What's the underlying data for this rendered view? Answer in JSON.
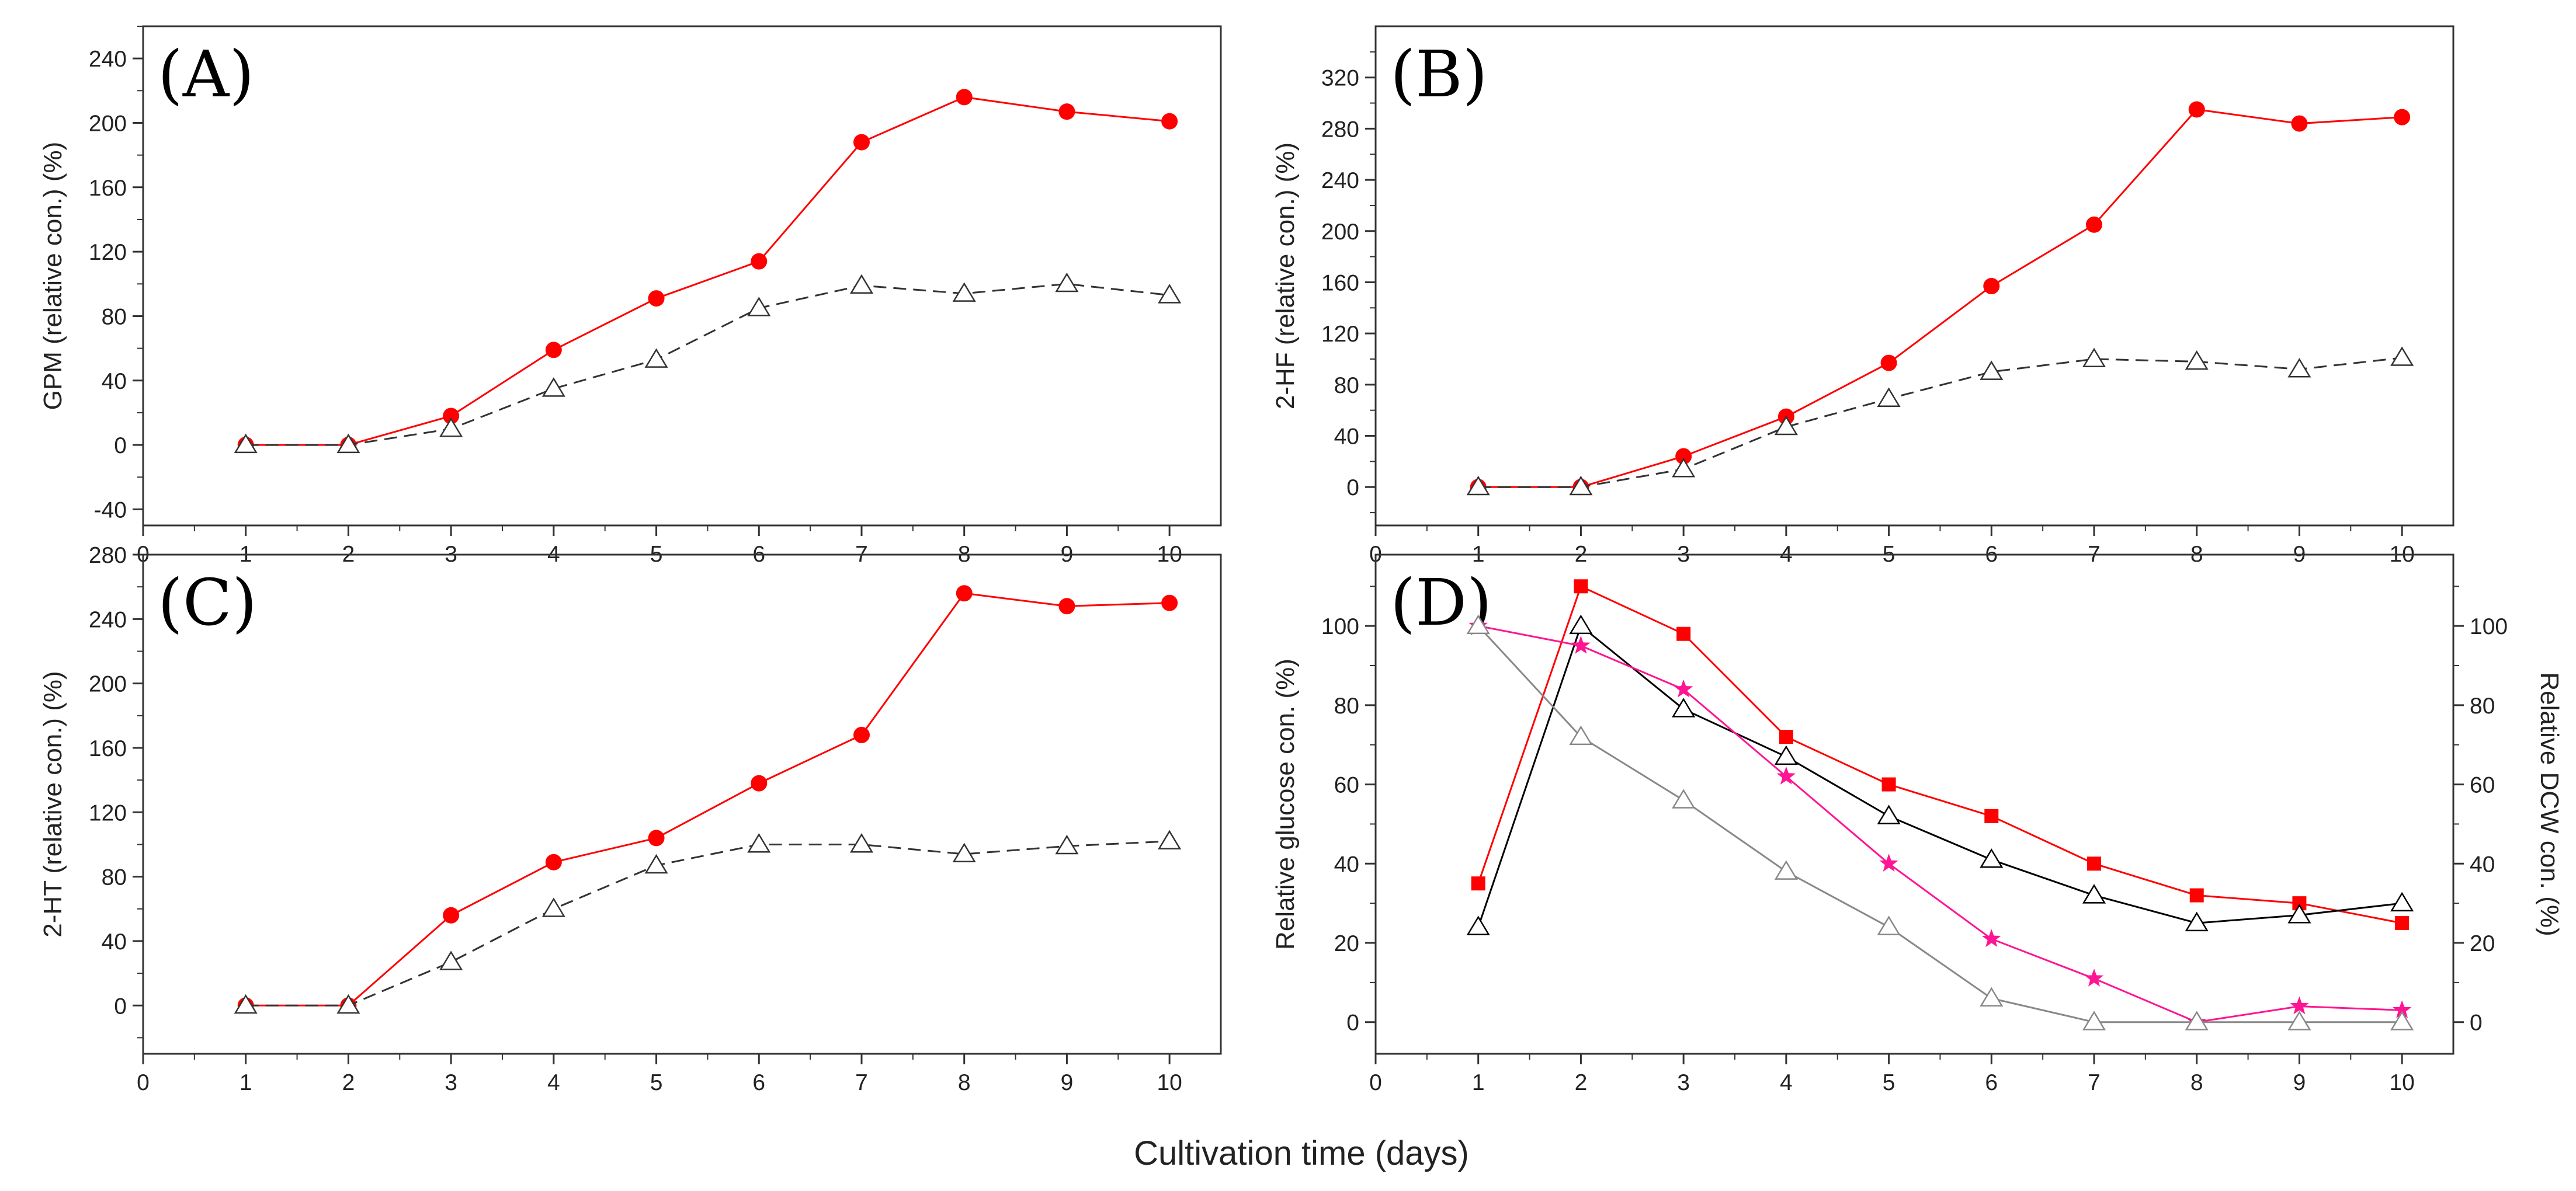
{
  "figure": {
    "xlabel": "Cultivation time (days)"
  },
  "chart_data": [
    {
      "type": "line",
      "panel": "(A)",
      "ylabel": "GPM (relative con.) (%)",
      "xlim": [
        0,
        10.5
      ],
      "ylim": [
        -50,
        260
      ],
      "xticks": [
        0,
        1,
        2,
        3,
        4,
        5,
        6,
        7,
        8,
        9,
        10
      ],
      "yticks": [
        -40,
        0,
        40,
        80,
        120,
        160,
        200,
        240
      ],
      "series": [
        {
          "marker": "circle",
          "color": "#ff0000",
          "dash": "solid",
          "x": [
            1,
            2,
            3,
            4,
            5,
            6,
            7,
            8,
            9,
            10
          ],
          "y": [
            0,
            0,
            18,
            59,
            91,
            114,
            188,
            216,
            207,
            201
          ]
        },
        {
          "marker": "triangle-open",
          "color": "#333333",
          "dash": "dashed",
          "x": [
            1,
            2,
            3,
            4,
            5,
            6,
            7,
            8,
            9,
            10
          ],
          "y": [
            0,
            0,
            10,
            35,
            53,
            85,
            99,
            94,
            100,
            93
          ]
        }
      ]
    },
    {
      "type": "line",
      "panel": "(B)",
      "ylabel": "2-HF (relative con.) (%)",
      "xlim": [
        0,
        10.5
      ],
      "ylim": [
        -30,
        360
      ],
      "xticks": [
        0,
        1,
        2,
        3,
        4,
        5,
        6,
        7,
        8,
        9,
        10
      ],
      "yticks": [
        0,
        40,
        80,
        120,
        160,
        200,
        240,
        280,
        320
      ],
      "series": [
        {
          "marker": "circle",
          "color": "#ff0000",
          "dash": "solid",
          "x": [
            1,
            2,
            3,
            4,
            5,
            6,
            7,
            8,
            9,
            10
          ],
          "y": [
            0,
            0,
            24,
            55,
            97,
            157,
            205,
            295,
            284,
            289
          ]
        },
        {
          "marker": "triangle-open",
          "color": "#333333",
          "dash": "dashed",
          "x": [
            1,
            2,
            3,
            4,
            5,
            6,
            7,
            8,
            9,
            10
          ],
          "y": [
            0,
            0,
            14,
            47,
            69,
            90,
            100,
            98,
            92,
            101
          ]
        }
      ]
    },
    {
      "type": "line",
      "panel": "(C)",
      "ylabel": "2-HT (relative con.) (%)",
      "xlim": [
        0,
        10.5
      ],
      "ylim": [
        -30,
        280
      ],
      "xticks": [
        0,
        1,
        2,
        3,
        4,
        5,
        6,
        7,
        8,
        9,
        10
      ],
      "yticks": [
        0,
        40,
        80,
        120,
        160,
        200,
        240,
        280
      ],
      "series": [
        {
          "marker": "circle",
          "color": "#ff0000",
          "dash": "solid",
          "x": [
            1,
            2,
            3,
            4,
            5,
            6,
            7,
            8,
            9,
            10
          ],
          "y": [
            0,
            0,
            56,
            89,
            104,
            138,
            168,
            256,
            248,
            250
          ]
        },
        {
          "marker": "triangle-open",
          "color": "#333333",
          "dash": "dashed",
          "x": [
            1,
            2,
            3,
            4,
            5,
            6,
            7,
            8,
            9,
            10
          ],
          "y": [
            0,
            0,
            27,
            60,
            87,
            100,
            100,
            94,
            99,
            102
          ]
        }
      ]
    },
    {
      "type": "line",
      "panel": "(D)",
      "ylabel": "Relative glucose con. (%)",
      "ylabel_right": "Relative DCW con. (%)",
      "xlim": [
        0,
        10.5
      ],
      "ylim": [
        -8,
        118
      ],
      "ylim_right": [
        -8,
        118
      ],
      "xticks": [
        0,
        1,
        2,
        3,
        4,
        5,
        6,
        7,
        8,
        9,
        10
      ],
      "yticks": [
        0,
        20,
        40,
        60,
        80,
        100
      ],
      "yticks_right": [
        0,
        20,
        40,
        60,
        80,
        100
      ],
      "series": [
        {
          "marker": "square",
          "color": "#ff0000",
          "dash": "solid",
          "axis": "right",
          "x": [
            1,
            2,
            3,
            4,
            5,
            6,
            7,
            8,
            9,
            10
          ],
          "y": [
            35,
            110,
            98,
            72,
            60,
            52,
            40,
            32,
            30,
            25
          ]
        },
        {
          "marker": "triangle-open",
          "color": "#000000",
          "dash": "solid",
          "axis": "right",
          "x": [
            1,
            2,
            3,
            4,
            5,
            6,
            7,
            8,
            9,
            10
          ],
          "y": [
            24,
            100,
            79,
            67,
            52,
            41,
            32,
            25,
            27,
            30
          ]
        },
        {
          "marker": "star",
          "color": "#ff1493",
          "dash": "solid",
          "axis": "left",
          "x": [
            1,
            2,
            3,
            4,
            5,
            6,
            7,
            8,
            9,
            10
          ],
          "y": [
            100,
            95,
            84,
            62,
            40,
            21,
            11,
            0,
            4,
            3
          ]
        },
        {
          "marker": "triangle-open",
          "color": "#888888",
          "dash": "solid",
          "axis": "left",
          "x": [
            1,
            2,
            3,
            4,
            5,
            6,
            7,
            8,
            9,
            10
          ],
          "y": [
            100,
            72,
            56,
            38,
            24,
            6,
            0,
            0,
            0,
            0
          ]
        }
      ]
    }
  ]
}
